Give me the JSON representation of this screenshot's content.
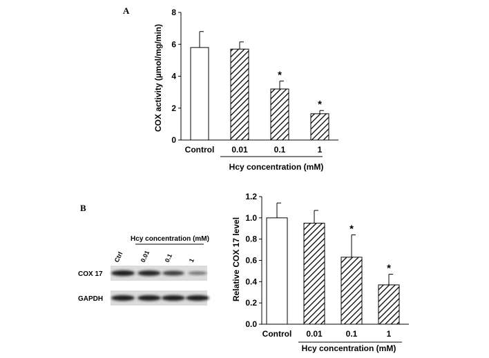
{
  "chart_data": [
    {
      "type": "bar",
      "panel": "A",
      "categories": [
        "Control",
        "0.01",
        "0.1",
        "1"
      ],
      "values": [
        5.8,
        5.7,
        3.2,
        1.65
      ],
      "errors": [
        1.0,
        0.45,
        0.5,
        0.2
      ],
      "significance": [
        "",
        "",
        "*",
        "*"
      ],
      "fills": [
        "plain",
        "hatched",
        "hatched",
        "hatched"
      ],
      "ylabel": "COX activity (µmol/mg/min)",
      "xlabel": "Hcy concentration (mM)",
      "ylim": [
        0,
        8
      ],
      "yticks": [
        0,
        2,
        4,
        6,
        8
      ],
      "ytick_labels": [
        "0",
        "2",
        "4",
        "6",
        "8"
      ]
    },
    {
      "type": "bar",
      "panel": "B",
      "categories": [
        "Control",
        "0.01",
        "0.1",
        "1"
      ],
      "values": [
        1.0,
        0.95,
        0.63,
        0.37
      ],
      "errors": [
        0.14,
        0.12,
        0.21,
        0.1
      ],
      "significance": [
        "",
        "",
        "*",
        "*"
      ],
      "fills": [
        "plain",
        "hatched",
        "hatched",
        "hatched"
      ],
      "ylabel": "Relative COX 17 level",
      "xlabel": "Hcy concentration (mM)",
      "ylim": [
        0,
        1.2
      ],
      "yticks": [
        0,
        0.2,
        0.4,
        0.6,
        0.8,
        1.0,
        1.2
      ],
      "ytick_labels": [
        "0.0",
        "0.2",
        "0.4",
        "0.6",
        "0.8",
        "1.0",
        "1.2"
      ]
    }
  ],
  "blot": {
    "title": "Hcy concentration (mM)",
    "lanes": [
      "Ctrl",
      "0.01",
      "0.1",
      "1"
    ],
    "rows": [
      {
        "label": "COX 17",
        "intensity": [
          1.0,
          0.95,
          0.75,
          0.35
        ]
      },
      {
        "label": "GAPDH",
        "intensity": [
          1.0,
          1.0,
          1.0,
          1.0
        ]
      }
    ]
  },
  "colors": {
    "axis": "#000000",
    "bar_fill": "#ffffff",
    "hatch": "#000000",
    "band": "#1a1a1a"
  }
}
